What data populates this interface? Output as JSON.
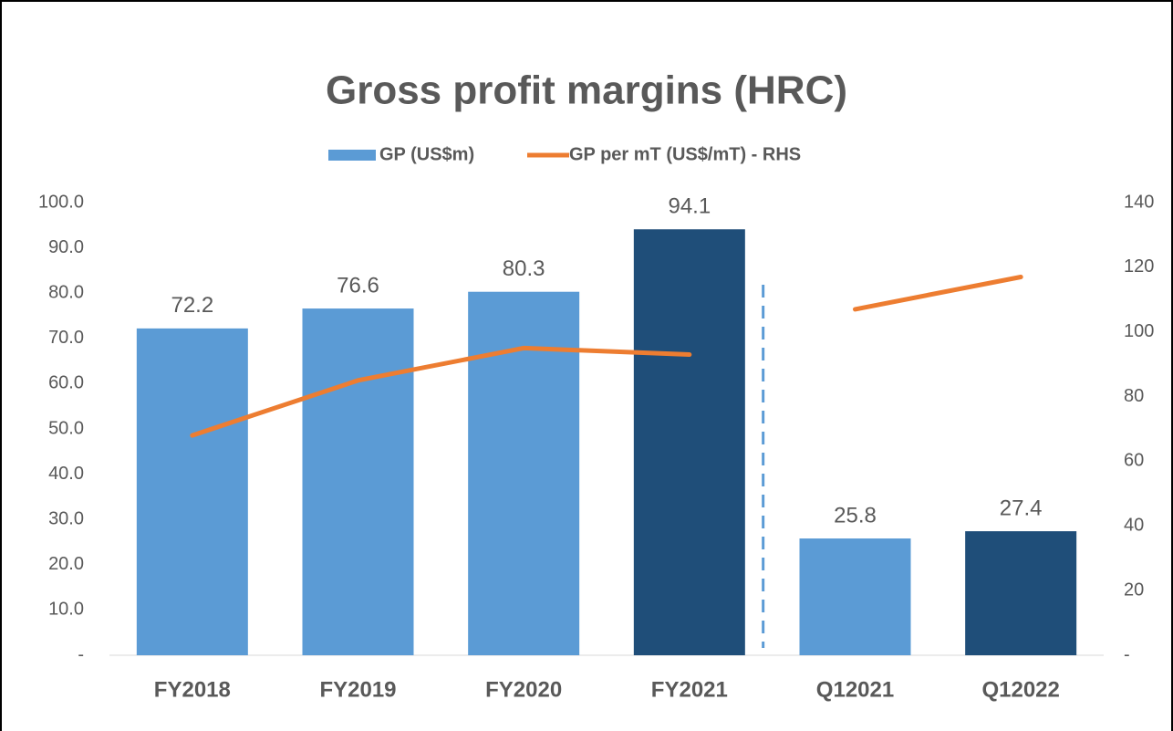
{
  "chart_data": {
    "type": "bar",
    "title": "Gross profit margins (HRC)",
    "categories": [
      "FY2018",
      "FY2019",
      "FY2020",
      "FY2021",
      "Q12021",
      "Q12022"
    ],
    "divider_before": "Q12021",
    "series": [
      {
        "name": "GP (US$m)",
        "type": "bar",
        "color": "#5b9bd5",
        "colors": [
          "#5b9bd5",
          "#5b9bd5",
          "#5b9bd5",
          "#1f4e79",
          "#5b9bd5",
          "#1f4e79"
        ],
        "values": [
          72.2,
          76.6,
          80.3,
          94.1,
          25.8,
          27.4
        ]
      },
      {
        "name": "GP per mT (US$/mT) - RHS",
        "type": "line",
        "axis": "y2",
        "color": "#ed7d31",
        "values": [
          68,
          85,
          95,
          93,
          107,
          117
        ]
      }
    ],
    "ylim": [
      0,
      100
    ],
    "yticks": [
      {
        "value": 0,
        "label": "-"
      },
      {
        "value": 10,
        "label": "10.0"
      },
      {
        "value": 20,
        "label": "20.0"
      },
      {
        "value": 30,
        "label": "30.0"
      },
      {
        "value": 40,
        "label": "40.0"
      },
      {
        "value": 50,
        "label": "50.0"
      },
      {
        "value": 60,
        "label": "60.0"
      },
      {
        "value": 70,
        "label": "70.0"
      },
      {
        "value": 80,
        "label": "80.0"
      },
      {
        "value": 90,
        "label": "90.0"
      },
      {
        "value": 100,
        "label": "100.0"
      }
    ],
    "y2lim": [
      0,
      140
    ],
    "y2ticks": [
      {
        "value": 0,
        "label": "-"
      },
      20,
      40,
      60,
      80,
      100,
      120,
      140
    ]
  }
}
